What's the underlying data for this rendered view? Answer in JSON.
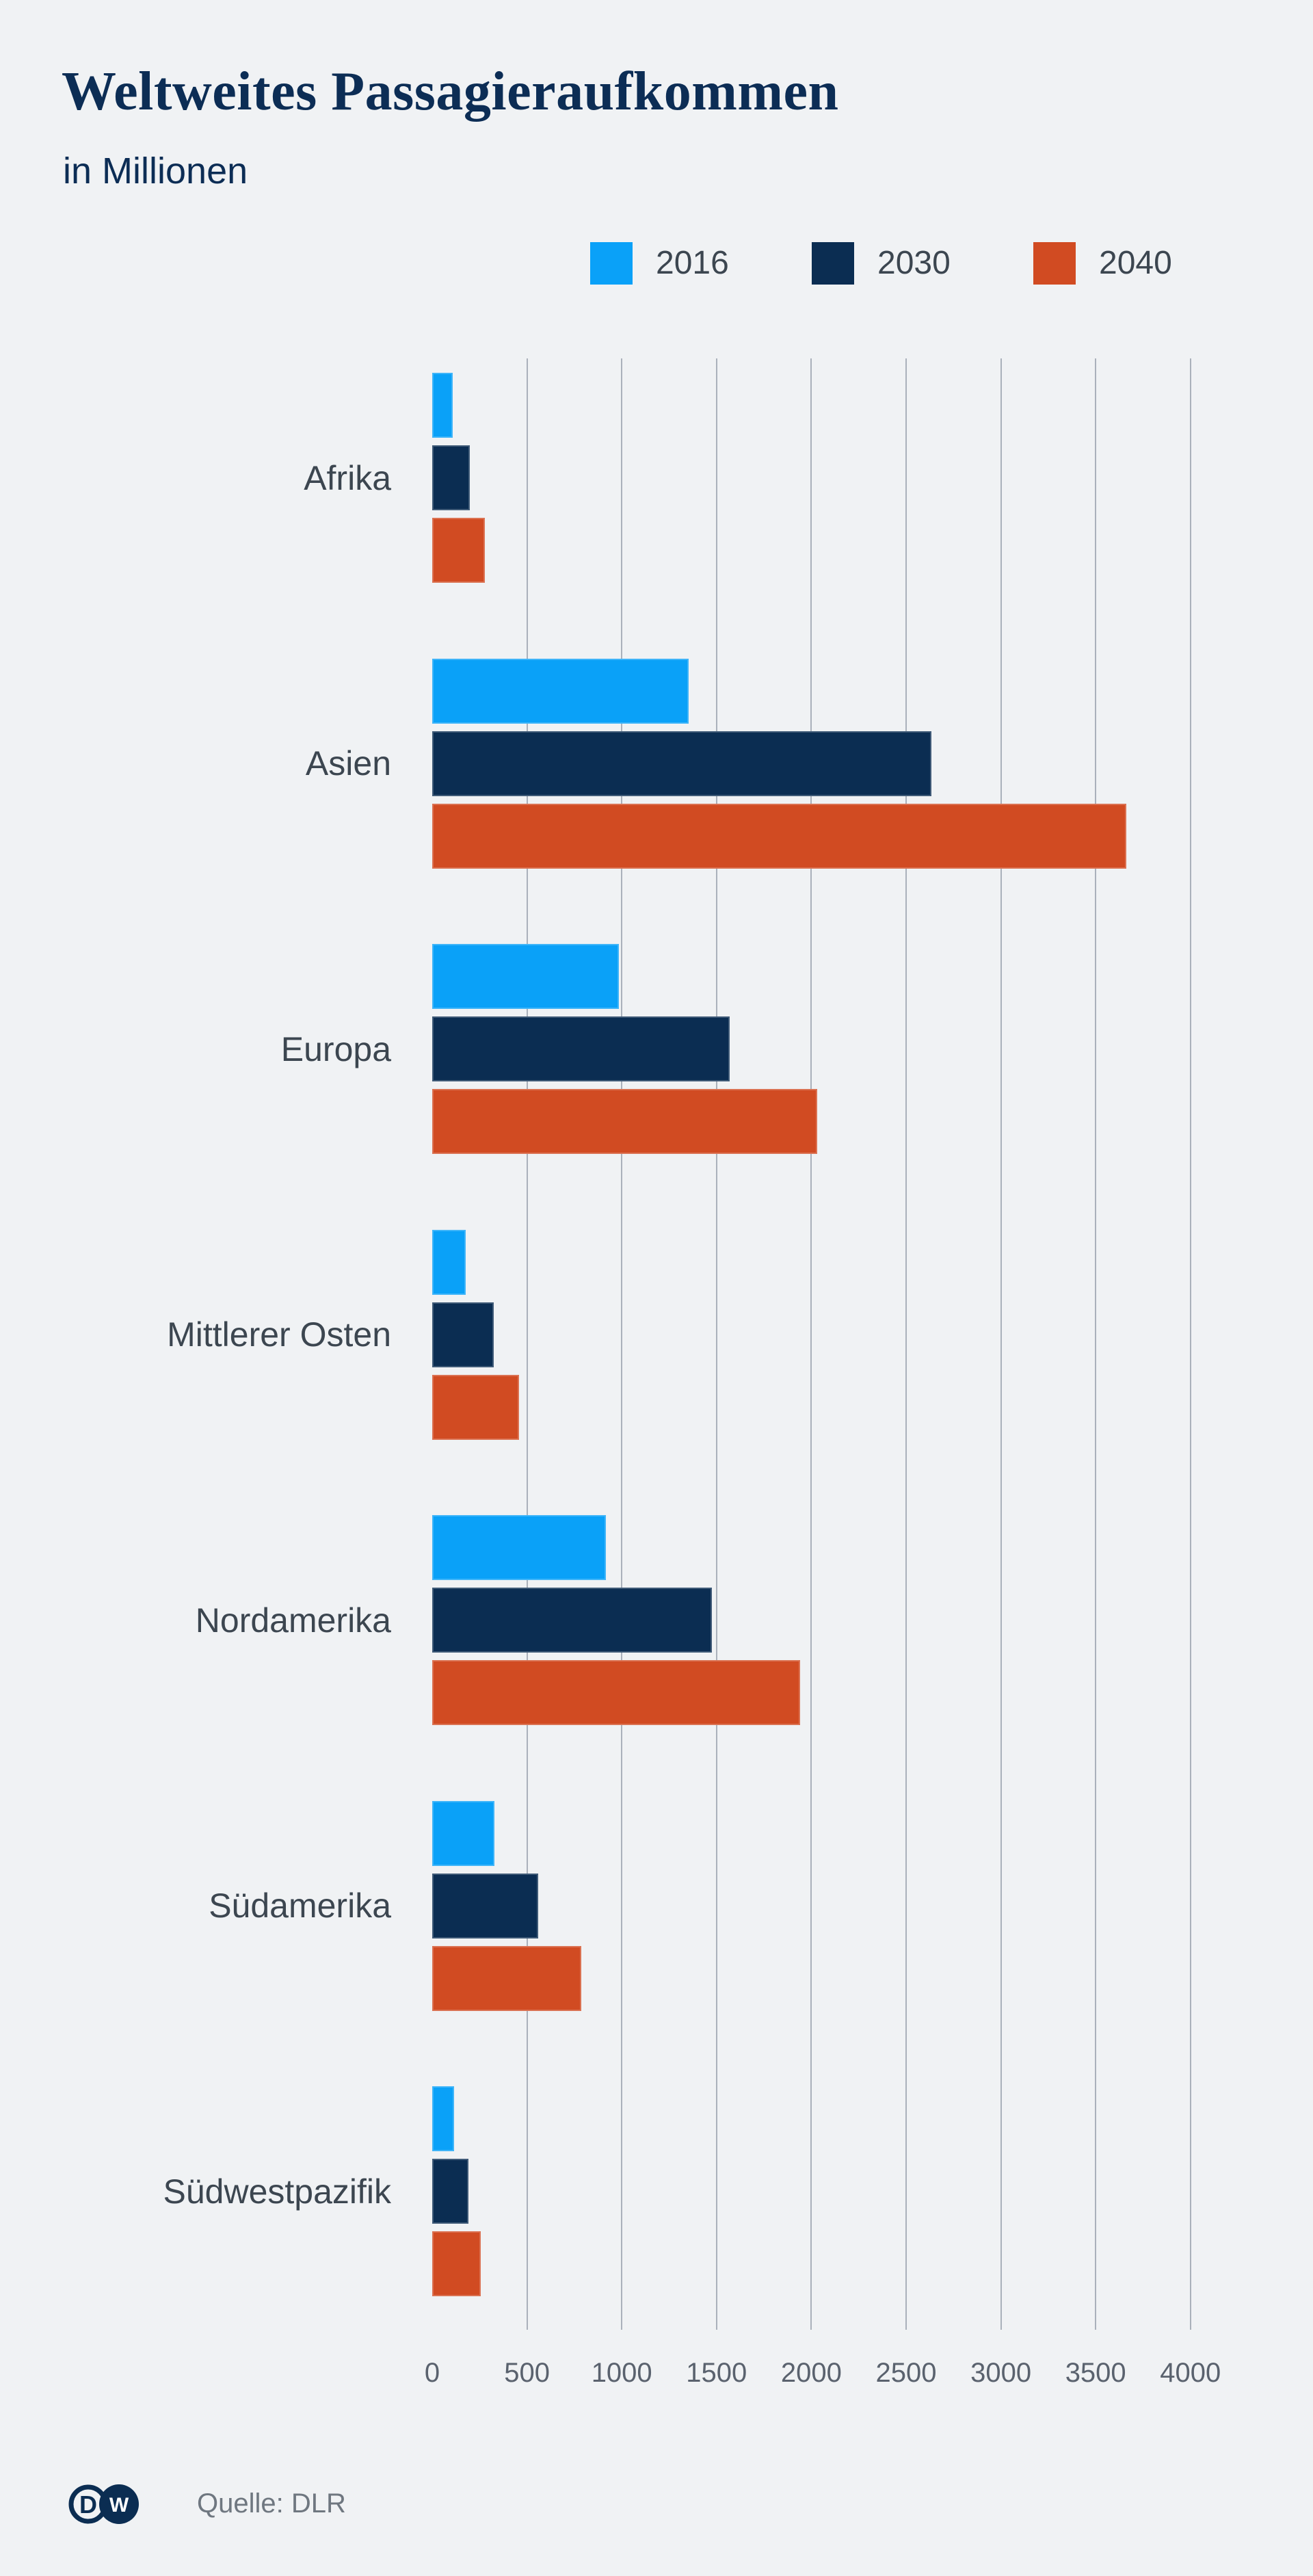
{
  "header": {
    "title": "Weltweites Passagieraufkommen",
    "subtitle": "in Millionen"
  },
  "chart_data": {
    "type": "bar",
    "orientation": "horizontal",
    "title": "Weltweites Passagieraufkommen",
    "subtitle": "in Millionen",
    "categories": [
      "Afrika",
      "Asien",
      "Europa",
      "Mittlerer Osten",
      "Nordamerika",
      "Südamerika",
      "Südwestpazifik"
    ],
    "series": [
      {
        "name": "2016",
        "color": "#0AA1F8",
        "values": [
          110,
          1352,
          985,
          175,
          916,
          330,
          117
        ]
      },
      {
        "name": "2030",
        "color": "#0B2D52",
        "values": [
          200,
          2635,
          1570,
          323,
          1476,
          560,
          193
        ]
      },
      {
        "name": "2040",
        "color": "#D14B22",
        "values": [
          277,
          3660,
          2030,
          458,
          1940,
          785,
          256
        ]
      }
    ],
    "x_ticks": [
      0,
      500,
      1000,
      1500,
      2000,
      2500,
      3000,
      3500,
      4000
    ],
    "xlim": [
      0,
      4000
    ],
    "grid": "vertical-gridlines",
    "legend_position": "top",
    "source": "Quelle: DLR"
  },
  "footer": {
    "source": "Quelle: DLR",
    "logo": {
      "letter_left": "D",
      "letter_right": "W"
    }
  },
  "colors": {
    "background": "#F0F2F4",
    "gridline": "#AAB1BB",
    "title": "#0C2D55",
    "category_label": "#3C4650",
    "axis_label": "#5A626E",
    "source_label": "#6F7780",
    "logo": "#0B2D52"
  }
}
